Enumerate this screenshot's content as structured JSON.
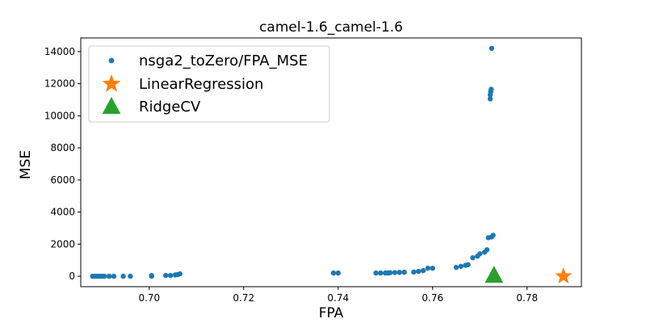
{
  "chart_data": {
    "type": "scatter",
    "title": "camel-1.6_camel-1.6",
    "xlabel": "FPA",
    "ylabel": "MSE",
    "xlim": [
      0.6855,
      0.7915
    ],
    "ylim": [
      -650,
      14850
    ],
    "xticks": [
      0.7,
      0.72,
      0.74,
      0.76,
      0.78
    ],
    "xtick_labels": [
      "0.70",
      "0.72",
      "0.74",
      "0.76",
      "0.78"
    ],
    "yticks": [
      0,
      2000,
      4000,
      6000,
      8000,
      10000,
      12000,
      14000
    ],
    "ytick_labels": [
      "0",
      "2000",
      "4000",
      "6000",
      "8000",
      "10000",
      "12000",
      "14000"
    ],
    "grid": false,
    "legend_position": "upper-left",
    "series": [
      {
        "name": "nsga2_toZero/FPA_MSE",
        "marker": "circle",
        "color": "#1f77b4",
        "points": [
          [
            0.688,
            0
          ],
          [
            0.6885,
            0
          ],
          [
            0.689,
            0
          ],
          [
            0.6895,
            0
          ],
          [
            0.69,
            0
          ],
          [
            0.6905,
            0
          ],
          [
            0.6915,
            0
          ],
          [
            0.6925,
            0
          ],
          [
            0.6945,
            0
          ],
          [
            0.696,
            0
          ],
          [
            0.7005,
            0
          ],
          [
            0.7005,
            50
          ],
          [
            0.7035,
            50
          ],
          [
            0.7045,
            50
          ],
          [
            0.7055,
            80
          ],
          [
            0.706,
            100
          ],
          [
            0.7065,
            150
          ],
          [
            0.739,
            200
          ],
          [
            0.74,
            200
          ],
          [
            0.748,
            200
          ],
          [
            0.749,
            200
          ],
          [
            0.75,
            200
          ],
          [
            0.7505,
            200
          ],
          [
            0.751,
            220
          ],
          [
            0.752,
            230
          ],
          [
            0.753,
            240
          ],
          [
            0.754,
            250
          ],
          [
            0.756,
            260
          ],
          [
            0.757,
            300
          ],
          [
            0.758,
            350
          ],
          [
            0.759,
            500
          ],
          [
            0.76,
            500
          ],
          [
            0.765,
            550
          ],
          [
            0.766,
            620
          ],
          [
            0.767,
            680
          ],
          [
            0.7675,
            720
          ],
          [
            0.7685,
            1150
          ],
          [
            0.7695,
            1250
          ],
          [
            0.77,
            1400
          ],
          [
            0.771,
            1500
          ],
          [
            0.7715,
            1650
          ],
          [
            0.7718,
            2400
          ],
          [
            0.7725,
            2450
          ],
          [
            0.7728,
            2550
          ],
          [
            0.7722,
            11050
          ],
          [
            0.7722,
            11300
          ],
          [
            0.7723,
            11500
          ],
          [
            0.7724,
            11650
          ],
          [
            0.7725,
            14200
          ]
        ]
      },
      {
        "name": "LinearRegression",
        "marker": "star",
        "color": "#ff7f0e",
        "points": [
          [
            0.7877,
            0
          ]
        ]
      },
      {
        "name": "RidgeCV",
        "marker": "triangle",
        "color": "#2ca02c",
        "points": [
          [
            0.773,
            50
          ]
        ]
      }
    ]
  }
}
